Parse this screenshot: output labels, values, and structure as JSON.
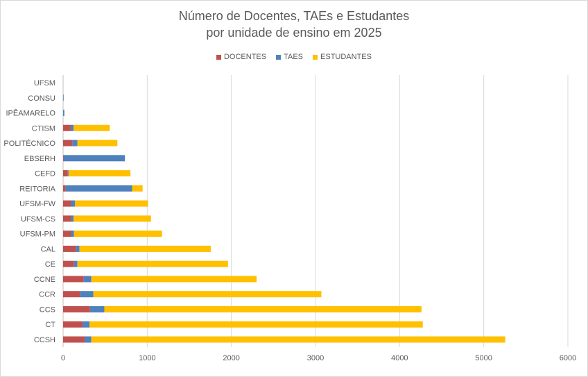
{
  "chart_data": {
    "type": "bar",
    "orientation": "horizontal",
    "stacked": true,
    "title": "Número de Docentes, TAEs e Estudantes",
    "subtitle": "por unidade de ensino em 2025",
    "categories": [
      "CCSH",
      "CT",
      "CCS",
      "CCR",
      "CCNE",
      "CE",
      "CAL",
      "UFSM-PM",
      "UFSM-CS",
      "UFSM-FW",
      "REITORIA",
      "CEFD",
      "EBSERH",
      "POLITÉCNICO",
      "CTISM",
      "IPÊAMARELO",
      "CONSU",
      "UFSM"
    ],
    "series": [
      {
        "name": "DOCENTES",
        "color": "#c0504d",
        "values": [
          255,
          230,
          320,
          200,
          245,
          130,
          150,
          95,
          95,
          95,
          30,
          55,
          5,
          110,
          90,
          0,
          0,
          0
        ]
      },
      {
        "name": "TAES",
        "color": "#4f81bd",
        "values": [
          80,
          85,
          170,
          160,
          90,
          40,
          45,
          35,
          30,
          45,
          790,
          10,
          730,
          60,
          35,
          15,
          5,
          0
        ]
      },
      {
        "name": "ESTUDANTES",
        "color": "#ffc000",
        "values": [
          4920,
          3960,
          3770,
          2710,
          1965,
          1790,
          1560,
          1045,
          920,
          870,
          125,
          735,
          0,
          475,
          430,
          0,
          0,
          0
        ]
      }
    ],
    "xlim": [
      0,
      6000
    ],
    "xticks": [
      "0",
      "1000",
      "2000",
      "3000",
      "4000",
      "5000",
      "6000"
    ],
    "grid": true,
    "legend_position": "top"
  }
}
